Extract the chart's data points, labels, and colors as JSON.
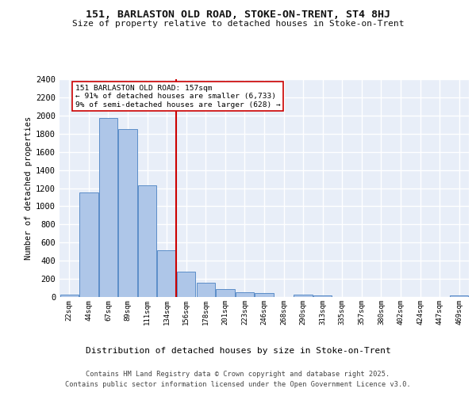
{
  "title1": "151, BARLASTON OLD ROAD, STOKE-ON-TRENT, ST4 8HJ",
  "title2": "Size of property relative to detached houses in Stoke-on-Trent",
  "xlabel": "Distribution of detached houses by size in Stoke-on-Trent",
  "ylabel": "Number of detached properties",
  "bins": [
    "22sqm",
    "44sqm",
    "67sqm",
    "89sqm",
    "111sqm",
    "134sqm",
    "156sqm",
    "178sqm",
    "201sqm",
    "223sqm",
    "246sqm",
    "268sqm",
    "290sqm",
    "313sqm",
    "335sqm",
    "357sqm",
    "380sqm",
    "402sqm",
    "424sqm",
    "447sqm",
    "469sqm"
  ],
  "values": [
    30,
    1150,
    1970,
    1850,
    1230,
    515,
    275,
    155,
    90,
    50,
    40,
    0,
    25,
    15,
    0,
    0,
    0,
    0,
    0,
    0,
    15
  ],
  "bar_color": "#aec6e8",
  "bar_edge_color": "#5b8dc8",
  "annotation_line1": "151 BARLASTON OLD ROAD: 157sqm",
  "annotation_line2": "← 91% of detached houses are smaller (6,733)",
  "annotation_line3": "9% of semi-detached houses are larger (628) →",
  "vline_color": "#cc0000",
  "annotation_box_color": "#ffffff",
  "annotation_box_edge": "#cc0000",
  "bg_color": "#e8eef8",
  "grid_color": "#ffffff",
  "footer1": "Contains HM Land Registry data © Crown copyright and database right 2025.",
  "footer2": "Contains public sector information licensed under the Open Government Licence v3.0.",
  "ylim": [
    0,
    2400
  ],
  "yticks": [
    0,
    200,
    400,
    600,
    800,
    1000,
    1200,
    1400,
    1600,
    1800,
    2000,
    2200,
    2400
  ]
}
